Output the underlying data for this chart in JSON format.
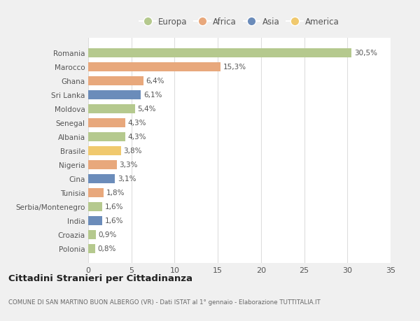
{
  "categories": [
    "Romania",
    "Marocco",
    "Ghana",
    "Sri Lanka",
    "Moldova",
    "Senegal",
    "Albania",
    "Brasile",
    "Nigeria",
    "Cina",
    "Tunisia",
    "Serbia/Montenegro",
    "India",
    "Croazia",
    "Polonia"
  ],
  "values": [
    30.5,
    15.3,
    6.4,
    6.1,
    5.4,
    4.3,
    4.3,
    3.8,
    3.3,
    3.1,
    1.8,
    1.6,
    1.6,
    0.9,
    0.8
  ],
  "labels": [
    "30,5%",
    "15,3%",
    "6,4%",
    "6,1%",
    "5,4%",
    "4,3%",
    "4,3%",
    "3,8%",
    "3,3%",
    "3,1%",
    "1,8%",
    "1,6%",
    "1,6%",
    "0,9%",
    "0,8%"
  ],
  "colors": [
    "#b5c98e",
    "#e8a87c",
    "#e8a87c",
    "#6b8cba",
    "#b5c98e",
    "#e8a87c",
    "#b5c98e",
    "#f0c96e",
    "#e8a87c",
    "#6b8cba",
    "#e8a87c",
    "#b5c98e",
    "#6b8cba",
    "#b5c98e",
    "#b5c98e"
  ],
  "legend_labels": [
    "Europa",
    "Africa",
    "Asia",
    "America"
  ],
  "legend_colors": [
    "#b5c98e",
    "#e8a87c",
    "#6b8cba",
    "#f0c96e"
  ],
  "xlim": [
    0,
    35
  ],
  "xticks": [
    0,
    5,
    10,
    15,
    20,
    25,
    30,
    35
  ],
  "title": "Cittadini Stranieri per Cittadinanza",
  "subtitle": "COMUNE DI SAN MARTINO BUON ALBERGO (VR) - Dati ISTAT al 1° gennaio - Elaborazione TUTTITALIA.IT",
  "background_color": "#f0f0f0",
  "plot_bg_color": "#ffffff",
  "grid_color": "#dddddd",
  "bar_height": 0.65,
  "label_fontsize": 7.5,
  "ytick_fontsize": 7.5,
  "xtick_fontsize": 8.0,
  "title_fontsize": 9.5,
  "subtitle_fontsize": 6.2,
  "legend_fontsize": 8.5
}
